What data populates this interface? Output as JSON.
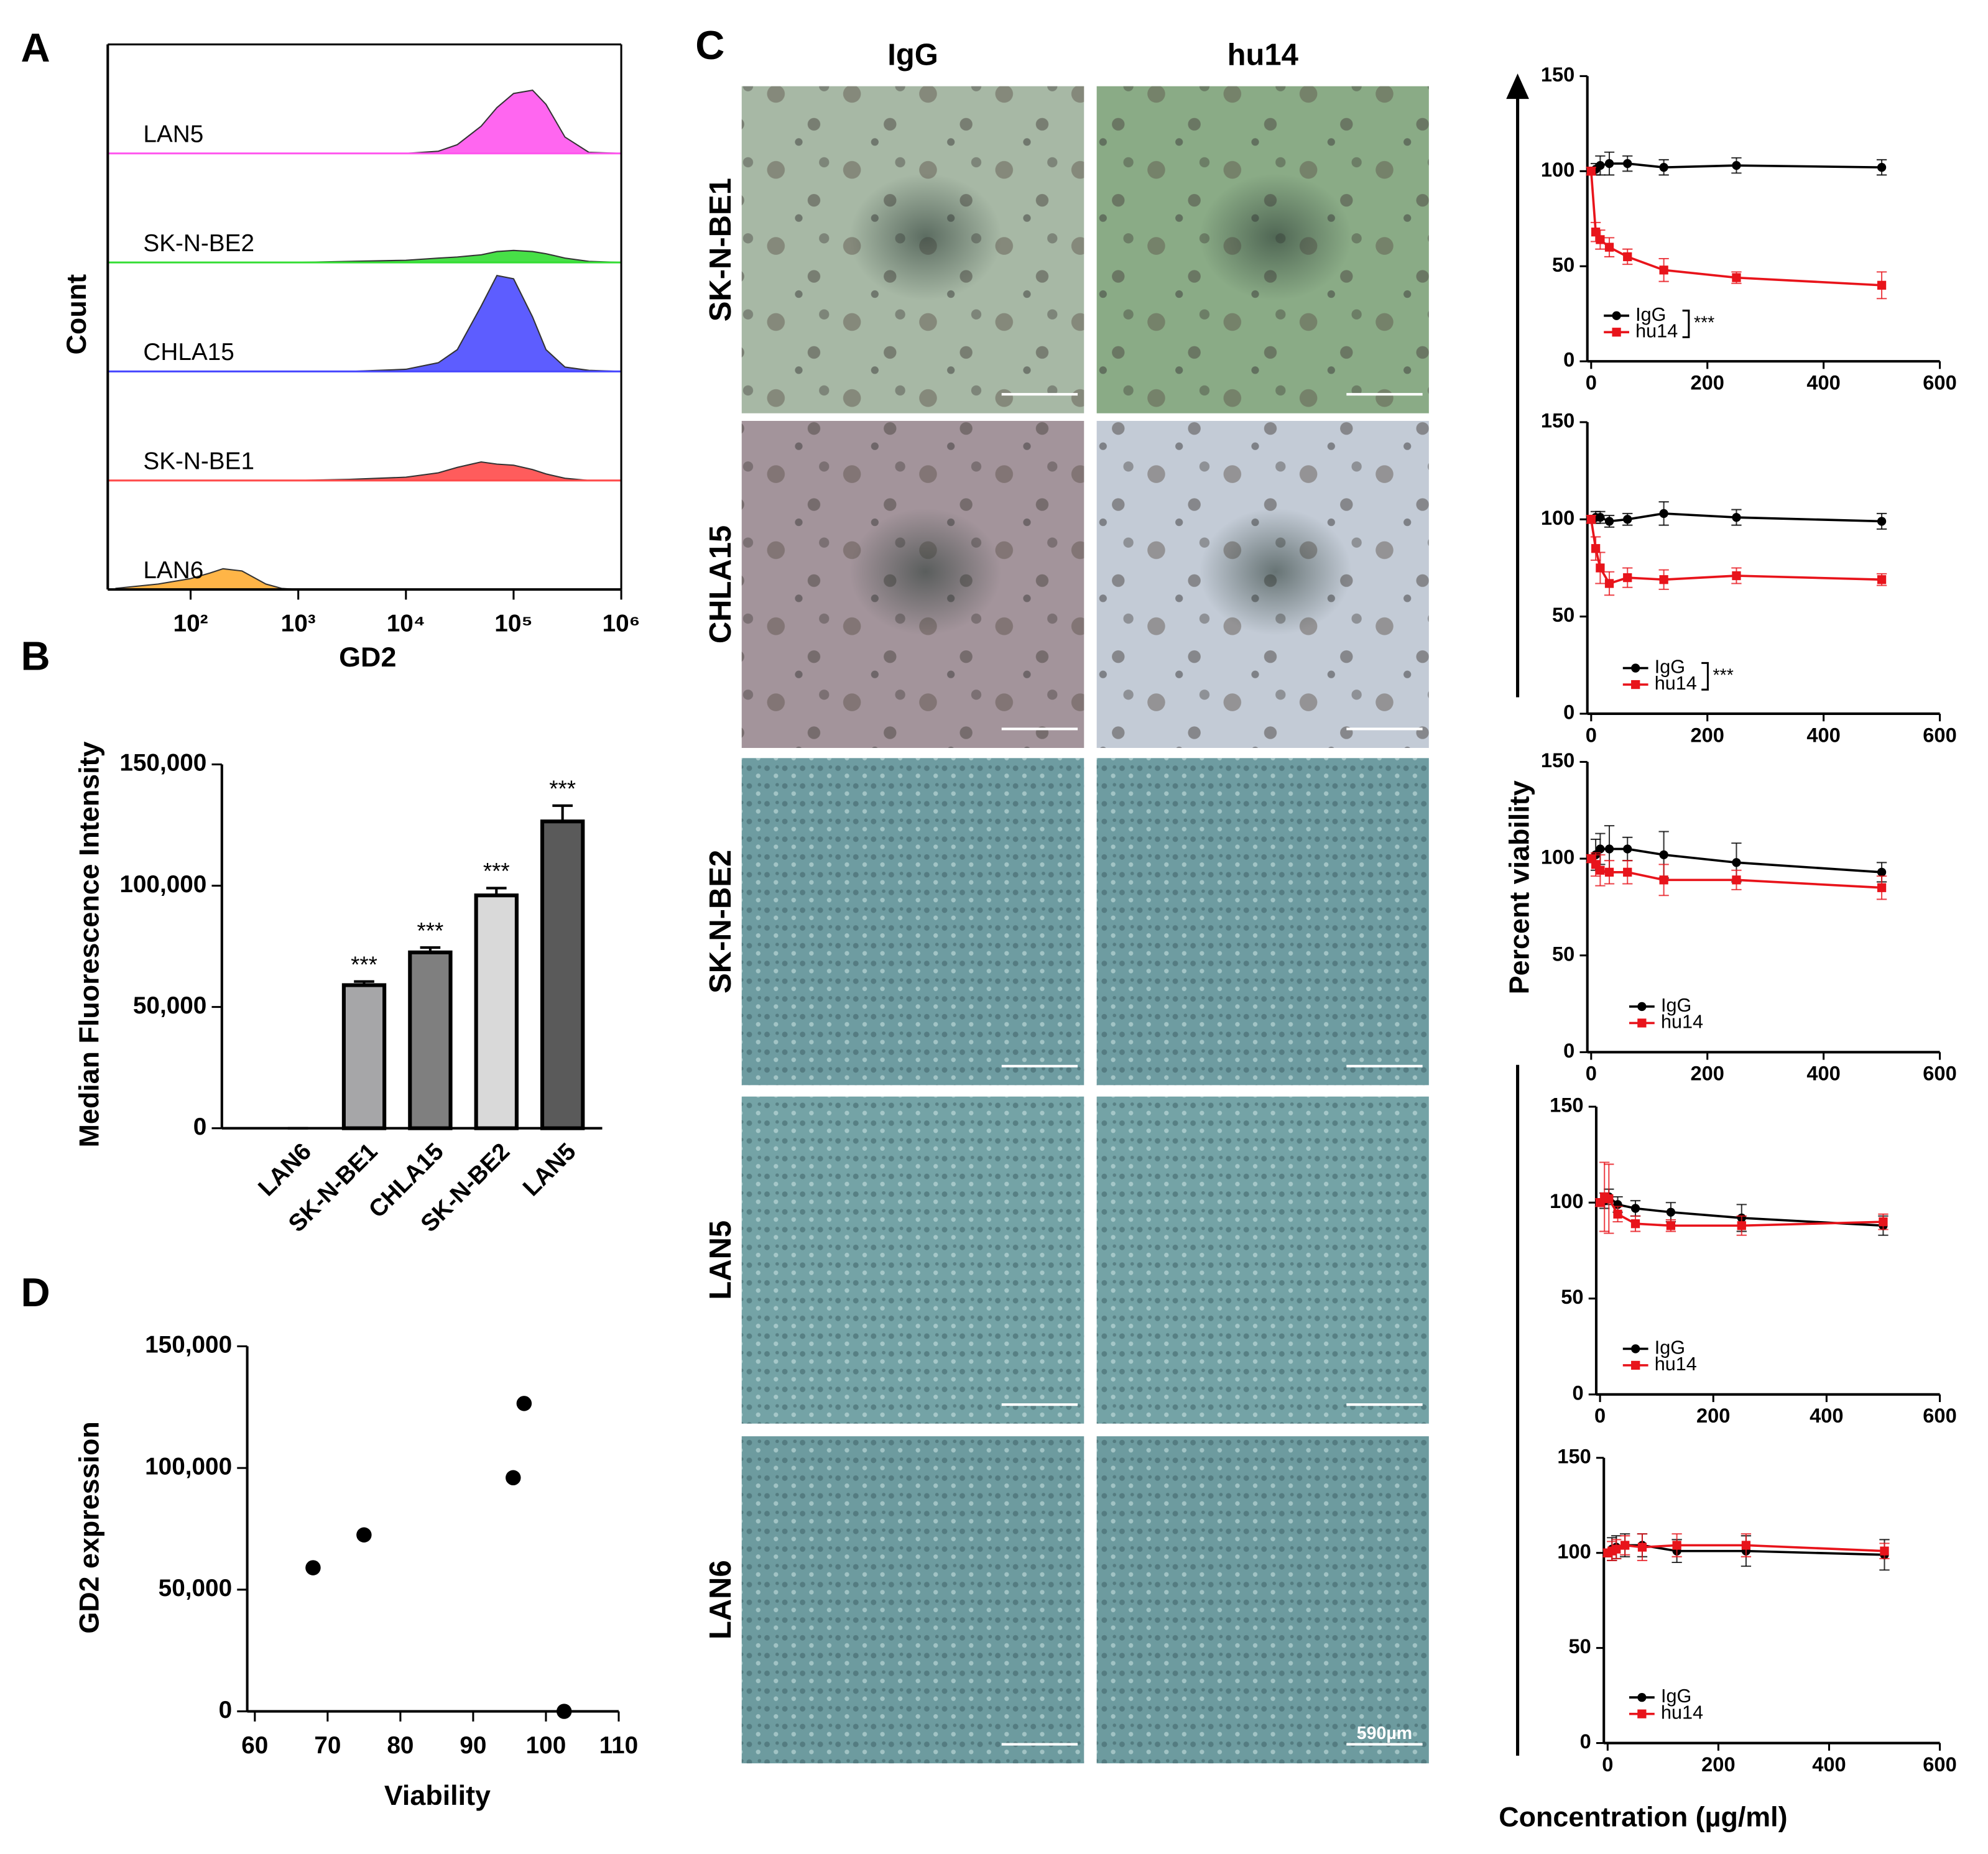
{
  "chart_data": [
    {
      "type": "ridge",
      "label": "A",
      "ylabel": "Count",
      "xlabel": "GD2",
      "log": true,
      "xlim": [
        17,
        1000000
      ],
      "ylim": [
        0,
        100
      ],
      "xticks": [
        {
          "value": 100,
          "label": "10²"
        },
        {
          "value": 1000,
          "label": "10³"
        },
        {
          "value": 10000,
          "label": "10⁴"
        },
        {
          "value": 100000,
          "label": "10⁵"
        },
        {
          "value": 1000000,
          "label": "10⁶"
        }
      ],
      "x": [
        20,
        50,
        100,
        150,
        200,
        300,
        500,
        700,
        1000,
        3000,
        10000,
        20000,
        30000,
        50000,
        70000,
        100000,
        150000,
        200000,
        300000,
        500000,
        1000000
      ],
      "series": [
        {
          "name": "LAN5",
          "color": "#ff55ee",
          "values": [
            0,
            0,
            0,
            0,
            0,
            0,
            0,
            0,
            0,
            0,
            0,
            2,
            8,
            25,
            42,
            55,
            58,
            45,
            15,
            1,
            0
          ]
        },
        {
          "name": "SK-N-BE2",
          "color": "#33dd33",
          "values": [
            0,
            0,
            0,
            0,
            0,
            0,
            0,
            0,
            0,
            1,
            2,
            4,
            5,
            7,
            10,
            11,
            10,
            8,
            4,
            1,
            0
          ]
        },
        {
          "name": "CHLA15",
          "color": "#4b4bff",
          "values": [
            0,
            0,
            0,
            0,
            0,
            0,
            0,
            0,
            0,
            0,
            2,
            8,
            20,
            60,
            88,
            85,
            50,
            20,
            4,
            1,
            0
          ]
        },
        {
          "name": "SK-N-BE1",
          "color": "#ff4a4a",
          "values": [
            0,
            0,
            0,
            0,
            0,
            0,
            0,
            0,
            0,
            1,
            3,
            7,
            12,
            17,
            15,
            14,
            10,
            6,
            2,
            0,
            0
          ]
        },
        {
          "name": "LAN6",
          "color": "#ffad33",
          "values": [
            1,
            5,
            10,
            15,
            19,
            17,
            5,
            1,
            0,
            0,
            0,
            0,
            0,
            0,
            0,
            0,
            0,
            0,
            0,
            0,
            0
          ]
        }
      ]
    },
    {
      "type": "bar",
      "label": "B",
      "ylabel": "Median Fluorescence Intensity",
      "ylim": [
        0,
        150000
      ],
      "yticks": [
        0,
        {
          "value": 50000,
          "label": "50,000"
        },
        {
          "value": 100000,
          "label": "100,000"
        },
        {
          "value": 150000,
          "label": "150,000"
        }
      ],
      "categories": [
        "LAN6",
        "SK-N-BE1",
        "CHLA15",
        "SK-N-BE2",
        "LAN5"
      ],
      "values": [
        0,
        59000,
        72500,
        96000,
        126500
      ],
      "errors": [
        0,
        1500,
        2000,
        3000,
        6500
      ],
      "colors": [
        "#ffffff",
        "#a6a6a8",
        "#7f7f7f",
        "#d9d9d9",
        "#5a5a5a"
      ],
      "annotations": [
        null,
        "***",
        "***",
        "***",
        "***"
      ]
    },
    {
      "type": "scatter",
      "label": "D",
      "xlabel": "Viability",
      "ylabel": "GD2 expression",
      "xlim": [
        60,
        110
      ],
      "xticks": [
        60,
        70,
        80,
        90,
        100,
        110
      ],
      "ylim": [
        0,
        150000
      ],
      "yticks": [
        0,
        {
          "value": 50000,
          "label": "50,000"
        },
        {
          "value": 100000,
          "label": "100,000"
        },
        {
          "value": 150000,
          "label": "150,000"
        }
      ],
      "x": [
        68,
        75,
        95.5,
        97,
        102.5
      ],
      "values": [
        59000,
        72500,
        96000,
        126500,
        0
      ],
      "color": "#000000"
    },
    {
      "type": "line",
      "x": [
        0,
        7.8,
        15.6,
        31.25,
        62.5,
        125,
        250,
        500
      ],
      "xlim": [
        0,
        600
      ],
      "xticks": [
        0,
        200,
        400,
        600
      ],
      "ylim": [
        0,
        150
      ],
      "yticks": [
        0,
        50,
        100,
        150
      ],
      "annotation": "***",
      "series": [
        {
          "name": "IgG",
          "color": "#000000",
          "marker": "circle",
          "values": [
            100,
            101,
            103,
            104,
            104,
            102,
            103,
            102
          ],
          "errors": [
            2,
            3,
            5,
            6,
            4,
            4,
            4,
            4
          ]
        },
        {
          "name": "hu14",
          "color": "#e8141b",
          "marker": "square",
          "values": [
            100,
            68,
            64,
            60,
            55,
            48,
            44,
            40
          ],
          "errors": [
            2,
            5,
            5,
            5,
            4,
            6,
            3,
            7
          ]
        }
      ]
    },
    {
      "type": "line",
      "x": [
        0,
        7.8,
        15.6,
        31.25,
        62.5,
        125,
        250,
        500
      ],
      "xlim": [
        0,
        600
      ],
      "xticks": [
        0,
        200,
        400,
        600
      ],
      "ylim": [
        0,
        150
      ],
      "yticks": [
        0,
        50,
        100,
        150
      ],
      "annotation": "***",
      "series": [
        {
          "name": "IgG",
          "color": "#000000",
          "marker": "circle",
          "values": [
            100,
            101,
            101,
            99,
            100,
            103,
            101,
            99
          ],
          "errors": [
            2,
            3,
            3,
            3,
            3,
            6,
            4,
            4
          ]
        },
        {
          "name": "hu14",
          "color": "#e8141b",
          "marker": "square",
          "values": [
            100,
            85,
            75,
            67,
            70,
            69,
            71,
            69
          ],
          "errors": [
            2,
            6,
            8,
            6,
            5,
            5,
            4,
            3
          ]
        }
      ]
    },
    {
      "type": "line",
      "x": [
        0,
        7.8,
        15.6,
        31.25,
        62.5,
        125,
        250,
        500
      ],
      "xlim": [
        0,
        600
      ],
      "xticks": [
        0,
        200,
        400,
        600
      ],
      "ylim": [
        0,
        150
      ],
      "yticks": [
        0,
        50,
        100,
        150
      ],
      "series": [
        {
          "name": "IgG",
          "color": "#000000",
          "marker": "circle",
          "values": [
            100,
            102,
            105,
            105,
            105,
            102,
            98,
            93
          ],
          "errors": [
            2,
            8,
            8,
            12,
            6,
            12,
            10,
            5
          ]
        },
        {
          "name": "hu14",
          "color": "#e8141b",
          "marker": "square",
          "values": [
            100,
            97,
            94,
            93,
            93,
            89,
            89,
            85
          ],
          "errors": [
            2,
            6,
            8,
            6,
            6,
            8,
            5,
            6
          ]
        }
      ]
    },
    {
      "type": "line",
      "x": [
        0,
        7.8,
        15.6,
        31.25,
        62.5,
        125,
        250,
        500
      ],
      "xlim": [
        0,
        600
      ],
      "xticks": [
        0,
        200,
        400,
        600
      ],
      "ylim": [
        0,
        150
      ],
      "yticks": [
        0,
        50,
        100,
        150
      ],
      "series": [
        {
          "name": "IgG",
          "color": "#000000",
          "marker": "circle",
          "values": [
            100,
            101,
            103,
            99,
            97,
            95,
            92,
            88
          ],
          "errors": [
            2,
            4,
            4,
            4,
            4,
            5,
            7,
            5
          ]
        },
        {
          "name": "hu14",
          "color": "#e8141b",
          "marker": "square",
          "values": [
            100,
            103,
            102,
            94,
            89,
            88,
            88,
            90
          ],
          "errors": [
            2,
            18,
            18,
            4,
            4,
            3,
            5,
            4
          ]
        }
      ]
    },
    {
      "type": "line",
      "x": [
        0,
        7.8,
        15.6,
        31.25,
        62.5,
        125,
        250,
        500
      ],
      "xlim": [
        0,
        600
      ],
      "xticks": [
        0,
        200,
        400,
        600
      ],
      "ylim": [
        0,
        150
      ],
      "yticks": [
        0,
        50,
        100,
        150
      ],
      "series": [
        {
          "name": "IgG",
          "color": "#000000",
          "marker": "circle",
          "values": [
            100,
            102,
            103,
            104,
            104,
            101,
            101,
            99
          ],
          "errors": [
            2,
            6,
            6,
            6,
            6,
            6,
            8,
            8
          ]
        },
        {
          "name": "hu14",
          "color": "#e8141b",
          "marker": "square",
          "values": [
            100,
            101,
            102,
            104,
            103,
            104,
            104,
            101
          ],
          "errors": [
            2,
            5,
            5,
            5,
            7,
            6,
            6,
            4
          ]
        }
      ]
    }
  ],
  "panel_c": {
    "label": "C",
    "columns": [
      "IgG",
      "hu14"
    ],
    "rows": [
      "SK-N-BE1",
      "CHLA15",
      "SK-N-BE2",
      "LAN5",
      "LAN6"
    ],
    "scale_label": "590µm",
    "ylabel": "Percent viability",
    "xlabel": "Concentration (µg/ml)"
  }
}
